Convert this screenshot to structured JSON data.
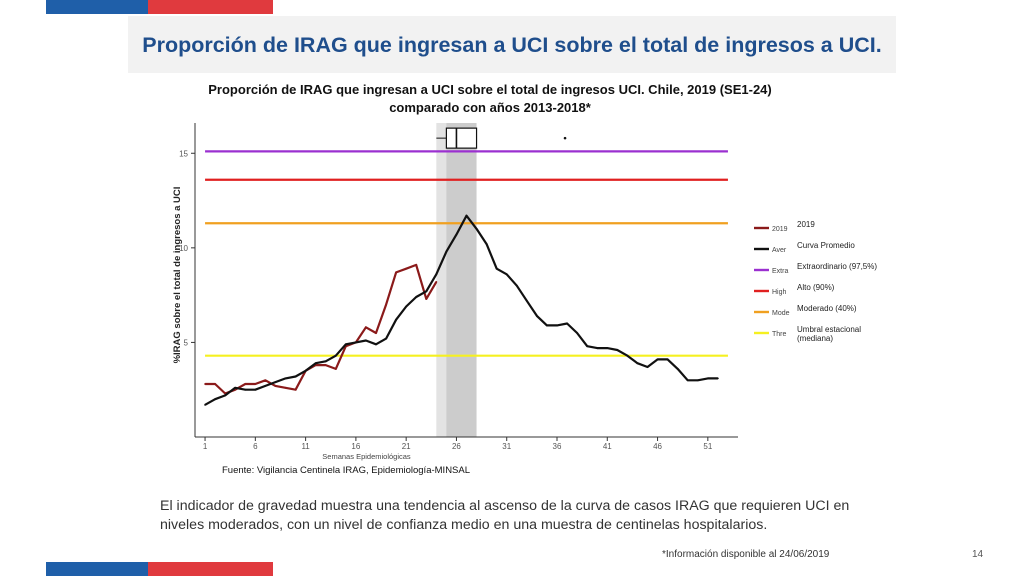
{
  "slide": {
    "title": "Proporción de IRAG que ingresan a UCI sobre el total de ingresos a UCI.",
    "body_text": "El indicador de gravedad muestra una tendencia al ascenso de la curva de casos IRAG que requieren UCI en niveles  moderados, con  un nivel de confianza medio en  una muestra de centinelas hospitalarios.",
    "footnote": "*Información disponible al 24/06/2019",
    "page_number": "14",
    "band_colors": {
      "blue": "#1f5fa9",
      "red": "#e03a3e"
    }
  },
  "chart_data": {
    "type": "line",
    "title": "Proporción de IRAG que ingresan a UCI sobre el total de ingresos UCI. Chile, 2019 (SE1-24) comparado con años 2013-2018*",
    "xlabel": "Semanas Epidemiológicas",
    "ylabel": "%IRAG sobre el total de ingresos a UCI",
    "source": "Fuente: Vigilancia Centinela IRAG, Epidemiología-MINSAL",
    "xlim": [
      0,
      54
    ],
    "ylim": [
      0,
      16.6
    ],
    "x_ticks": [
      1,
      6,
      11,
      16,
      21,
      26,
      31,
      36,
      41,
      46,
      51
    ],
    "y_ticks": [
      5,
      10,
      15
    ],
    "grid": false,
    "legend_position": "right",
    "shaded_regions": [
      {
        "from": 24.0,
        "to": 27.0,
        "color": "#e3e3e3"
      },
      {
        "from": 25.0,
        "to": 28.0,
        "color": "#cccccc"
      }
    ],
    "boxplot": {
      "q1": 25.0,
      "median": 26.0,
      "q3": 28.0,
      "whisker_low": 24.0,
      "whisker_high": 28.0,
      "outlier": 36.8,
      "y": 15.8
    },
    "thresholds": [
      {
        "key": "extraordinario",
        "value": 15.1,
        "color": "#9b30d0"
      },
      {
        "key": "alto",
        "value": 13.6,
        "color": "#e02020"
      },
      {
        "key": "moderado",
        "value": 11.3,
        "color": "#f0a020"
      },
      {
        "key": "umbral",
        "value": 4.3,
        "color": "#f5f020"
      }
    ],
    "series": [
      {
        "key": "2019",
        "color": "#8b1a1a",
        "x": [
          1,
          2,
          3,
          4,
          5,
          6,
          7,
          8,
          9,
          10,
          11,
          12,
          13,
          14,
          15,
          16,
          17,
          18,
          19,
          20,
          21,
          22,
          23,
          24
        ],
        "y": [
          2.8,
          2.8,
          2.3,
          2.5,
          2.8,
          2.8,
          3.0,
          2.7,
          2.6,
          2.5,
          3.5,
          3.8,
          3.8,
          3.6,
          4.8,
          5.0,
          5.8,
          5.5,
          7.0,
          8.7,
          8.9,
          9.1,
          7.3,
          8.2
        ]
      },
      {
        "key": "promedio",
        "color": "#111111",
        "x": [
          1,
          2,
          3,
          4,
          5,
          6,
          7,
          8,
          9,
          10,
          11,
          12,
          13,
          14,
          15,
          16,
          17,
          18,
          19,
          20,
          21,
          22,
          23,
          24,
          25,
          26,
          27,
          28,
          29,
          30,
          31,
          32,
          33,
          34,
          35,
          36,
          37,
          38,
          39,
          40,
          41,
          42,
          43,
          44,
          45,
          46,
          47,
          48,
          49,
          50,
          51,
          52
        ],
        "y": [
          1.7,
          2.0,
          2.2,
          2.6,
          2.5,
          2.5,
          2.7,
          2.9,
          3.1,
          3.2,
          3.5,
          3.9,
          4.0,
          4.3,
          4.9,
          5.0,
          5.1,
          4.9,
          5.2,
          6.2,
          6.9,
          7.4,
          7.7,
          8.6,
          9.8,
          10.7,
          11.7,
          11.0,
          10.2,
          8.9,
          8.6,
          8.0,
          7.2,
          6.4,
          5.9,
          5.9,
          6.0,
          5.5,
          4.8,
          4.7,
          4.7,
          4.6,
          4.3,
          3.9,
          3.7,
          4.1,
          4.1,
          3.6,
          3.0,
          3.0,
          3.1,
          3.1
        ]
      }
    ],
    "legend": {
      "truncated_keys": [
        "2019",
        "Aver",
        "Extra",
        "High",
        "Mode",
        "Thre"
      ],
      "labels": [
        "2019",
        "Curva Promedio",
        "Extraordinario (97,5%)",
        "Alto (90%)",
        "Moderado (40%)",
        "Umbral estacional (mediana)"
      ],
      "colors": [
        "#8b1a1a",
        "#111111",
        "#9b30d0",
        "#e02020",
        "#f0a020",
        "#f5f020"
      ]
    }
  }
}
